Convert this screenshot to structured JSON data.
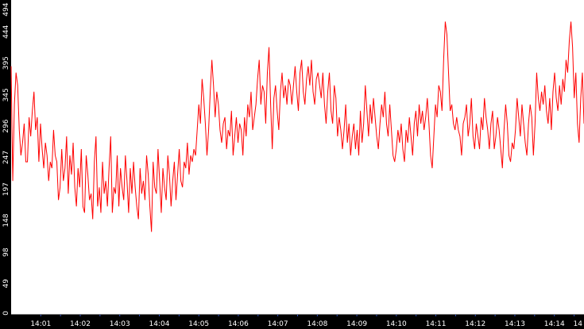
{
  "chart_data": {
    "type": "line",
    "title": "",
    "xlabel": "",
    "ylabel": "",
    "grid": false,
    "legend": "none",
    "colors": {
      "background": "#000000",
      "plot_area": "#ffffff",
      "line": "#ff0000",
      "axis": "#000000",
      "tick_text": "#ffffff",
      "minor_tick": "#3355cc"
    },
    "ylim": [
      0,
      494
    ],
    "y_ticks": [
      0,
      49,
      98,
      148,
      197,
      247,
      296,
      345,
      395,
      444,
      494
    ],
    "x_range_minutes": [
      0.25,
      14.75
    ],
    "x_ticks": [
      {
        "label": "14:01",
        "minute": 1
      },
      {
        "label": "14:02",
        "minute": 2
      },
      {
        "label": "14:03",
        "minute": 3
      },
      {
        "label": "14:04",
        "minute": 4
      },
      {
        "label": "14:05",
        "minute": 5
      },
      {
        "label": "14:06",
        "minute": 6
      },
      {
        "label": "14:07",
        "minute": 7
      },
      {
        "label": "14:08",
        "minute": 8
      },
      {
        "label": "14:09",
        "minute": 9
      },
      {
        "label": "14:10",
        "minute": 10
      },
      {
        "label": "14:11",
        "minute": 11
      },
      {
        "label": "14:12",
        "minute": 12
      },
      {
        "label": "14:13",
        "minute": 13
      },
      {
        "label": "14:14",
        "minute": 14
      },
      {
        "label": "14",
        "minute": 14.75
      }
    ],
    "series": [
      {
        "x_start_minute": 0.25,
        "x_end_minute": 14.75,
        "values": [
          390,
          210,
          330,
          380,
          360,
          290,
          250,
          270,
          300,
          240,
          240,
          310,
          280,
          320,
          350,
          290,
          310,
          240,
          300,
          260,
          230,
          270,
          250,
          210,
          240,
          230,
          290,
          250,
          240,
          180,
          200,
          260,
          210,
          230,
          280,
          190,
          250,
          220,
          270,
          200,
          170,
          230,
          200,
          260,
          170,
          160,
          250,
          220,
          180,
          190,
          150,
          240,
          280,
          170,
          200,
          160,
          240,
          190,
          210,
          170,
          230,
          280,
          160,
          200,
          190,
          250,
          170,
          230,
          200,
          180,
          250,
          210,
          160,
          230,
          190,
          240,
          200,
          170,
          150,
          230,
          190,
          210,
          180,
          250,
          220,
          170,
          130,
          240,
          200,
          190,
          260,
          210,
          160,
          230,
          200,
          180,
          250,
          220,
          170,
          210,
          240,
          180,
          220,
          260,
          210,
          200,
          240,
          230,
          270,
          220,
          250,
          240,
          260,
          250,
          290,
          330,
          300,
          370,
          340,
          300,
          250,
          290,
          350,
          400,
          360,
          310,
          350,
          330,
          290,
          270,
          300,
          310,
          260,
          290,
          280,
          320,
          250,
          280,
          310,
          270,
          300,
          290,
          250,
          310,
          280,
          330,
          310,
          350,
          290,
          310,
          330,
          370,
          400,
          330,
          360,
          350,
          300,
          380,
          420,
          330,
          260,
          340,
          360,
          320,
          290,
          350,
          380,
          340,
          360,
          330,
          370,
          360,
          330,
          360,
          390,
          350,
          320,
          380,
          400,
          350,
          330,
          370,
          390,
          360,
          400,
          350,
          330,
          370,
          380,
          360,
          340,
          380,
          330,
          300,
          350,
          380,
          320,
          300,
          360,
          340,
          280,
          310,
          290,
          260,
          290,
          330,
          270,
          300,
          250,
          280,
          300,
          260,
          290,
          250,
          320,
          270,
          300,
          360,
          320,
          280,
          330,
          300,
          340,
          310,
          280,
          260,
          300,
          330,
          310,
          350,
          300,
          280,
          330,
          290,
          250,
          240,
          260,
          290,
          270,
          300,
          260,
          240,
          290,
          270,
          310,
          280,
          250,
          300,
          320,
          280,
          330,
          300,
          320,
          290,
          310,
          340,
          300,
          250,
          230,
          280,
          330,
          310,
          360,
          350,
          320,
          400,
          460,
          440,
          380,
          320,
          330,
          300,
          290,
          310,
          290,
          280,
          250,
          300,
          310,
          330,
          280,
          300,
          340,
          280,
          260,
          300,
          280,
          260,
          310,
          290,
          340,
          310,
          290,
          260,
          300,
          320,
          260,
          280,
          310,
          290,
          260,
          230,
          290,
          330,
          300,
          250,
          240,
          270,
          260,
          290,
          340,
          310,
          280,
          330,
          300,
          270,
          250,
          300,
          330,
          310,
          250,
          300,
          380,
          340,
          320,
          350,
          330,
          360,
          320,
          300,
          340,
          290,
          350,
          380,
          340,
          320,
          360,
          330,
          370,
          350,
          400,
          380,
          430,
          460,
          420,
          340,
          380,
          300,
          270,
          340,
          380,
          300
        ]
      }
    ]
  }
}
